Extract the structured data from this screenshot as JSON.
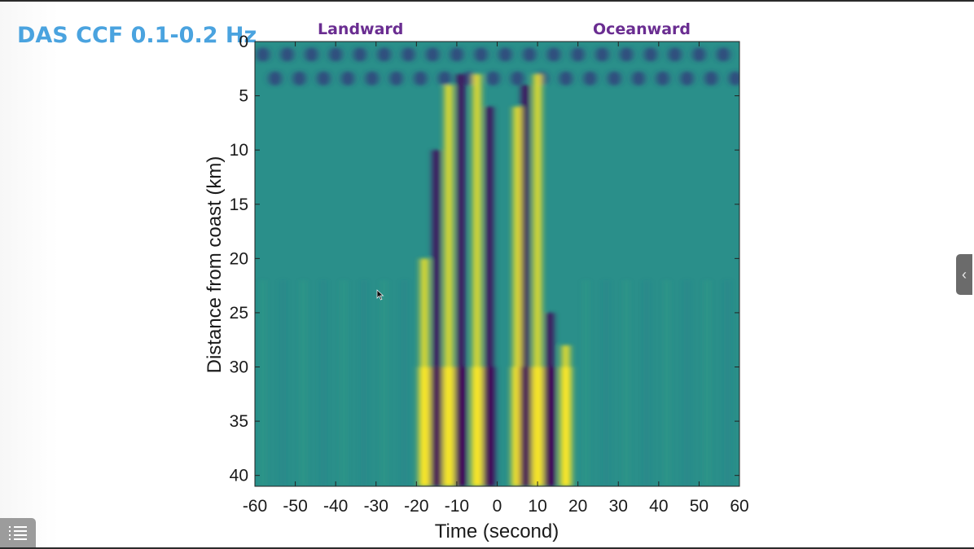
{
  "slide": {
    "title": "DAS CCF 0.1-0.2 Hz",
    "landward_label": "Landward",
    "oceanward_label": "Oceanward"
  },
  "icons": {
    "side_tab": "chevron-left-icon",
    "menu": "list-menu-icon",
    "cursor": "mouse-pointer-icon"
  },
  "chart_data": {
    "type": "heatmap",
    "title": "",
    "xlabel": "Time (second)",
    "ylabel": "Distance from coast (km)",
    "xlim": [
      -60,
      60
    ],
    "ylim": [
      41,
      0
    ],
    "y_reversed": true,
    "xticks": [
      -60,
      -50,
      -40,
      -30,
      -20,
      -10,
      0,
      10,
      20,
      30,
      40,
      50,
      60
    ],
    "yticks": [
      0,
      5,
      10,
      15,
      20,
      25,
      30,
      35,
      40
    ],
    "colormap": "viridis",
    "colors": {
      "low": "#440154",
      "mid": "#21918c",
      "high": "#fde725",
      "background": "#2a8f8a"
    },
    "description_of_features": [
      {
        "kind": "positive-lobe",
        "time_s": -18,
        "from_km": 20,
        "to_km": 41
      },
      {
        "kind": "negative-lobe",
        "time_s": -15,
        "from_km": 10,
        "to_km": 41
      },
      {
        "kind": "positive-lobe",
        "time_s": -12,
        "from_km": 4,
        "to_km": 41
      },
      {
        "kind": "negative-lobe",
        "time_s": -9,
        "from_km": 3,
        "to_km": 41
      },
      {
        "kind": "positive-lobe",
        "time_s": -5,
        "from_km": 3,
        "to_km": 41
      },
      {
        "kind": "negative-lobe",
        "time_s": -2,
        "from_km": 6,
        "to_km": 41
      },
      {
        "kind": "positive-lobe",
        "time_s": 5,
        "from_km": 6,
        "to_km": 41
      },
      {
        "kind": "negative-lobe",
        "time_s": 7,
        "from_km": 4,
        "to_km": 41
      },
      {
        "kind": "positive-lobe",
        "time_s": 10,
        "from_km": 3,
        "to_km": 41
      },
      {
        "kind": "negative-lobe",
        "time_s": 13,
        "from_km": 25,
        "to_km": 41
      },
      {
        "kind": "positive-lobe",
        "time_s": 17,
        "from_km": 28,
        "to_km": 41
      }
    ]
  }
}
